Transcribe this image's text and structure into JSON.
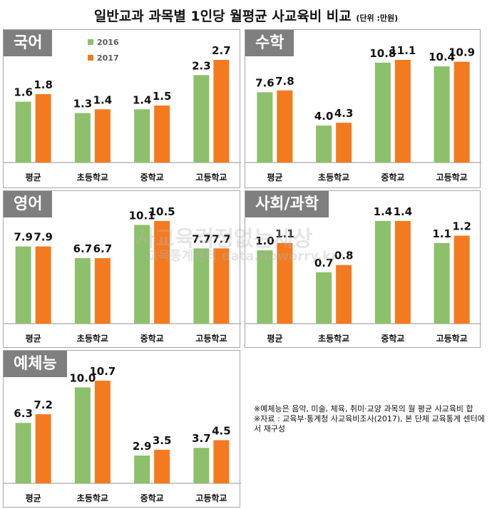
{
  "title": "일반교과 과목별 1인당 월평균 사교육비 비교",
  "unit": "(단위 :만원)",
  "legend": [
    "2016",
    "2017"
  ],
  "colors": {
    "2016": "#8dc06a",
    "2017": "#f47a20",
    "tab": "#7f7f7f"
  },
  "watermark": {
    "line1": "사교육걱정없는세상",
    "line2": "교육통계센터 data.noworry.kr"
  },
  "notes": [
    "※예체능은 음악, 미술, 체육, 취미·교양 과목의 월 평균 사교육비 합",
    "※자료 : 교육부·통계청 사교육비조사(2017), 본 단체 교육통계 센터에서 재구성"
  ],
  "chart_data": [
    {
      "type": "bar",
      "title": "국어",
      "categories": [
        "평균",
        "초등학교",
        "중학교",
        "고등학교"
      ],
      "series": [
        {
          "name": "2016",
          "values": [
            1.6,
            1.3,
            1.4,
            2.3
          ]
        },
        {
          "name": "2017",
          "values": [
            1.8,
            1.4,
            1.5,
            2.7
          ]
        }
      ],
      "legend_position": "top-left"
    },
    {
      "type": "bar",
      "title": "수학",
      "categories": [
        "평균",
        "초등학교",
        "중학교",
        "고등학교"
      ],
      "series": [
        {
          "name": "2016",
          "values": [
            7.6,
            4.0,
            10.8,
            10.4
          ]
        },
        {
          "name": "2017",
          "values": [
            7.8,
            4.3,
            11.1,
            10.9
          ]
        }
      ]
    },
    {
      "type": "bar",
      "title": "영어",
      "categories": [
        "평균",
        "초등학교",
        "중학교",
        "고등학교"
      ],
      "series": [
        {
          "name": "2016",
          "values": [
            7.9,
            6.7,
            10.1,
            7.7
          ]
        },
        {
          "name": "2017",
          "values": [
            7.9,
            6.7,
            10.5,
            7.7
          ]
        }
      ]
    },
    {
      "type": "bar",
      "title": "사회/과학",
      "categories": [
        "평균",
        "초등학교",
        "중학교",
        "고등학교"
      ],
      "series": [
        {
          "name": "2016",
          "values": [
            1.0,
            0.7,
            1.4,
            1.1
          ]
        },
        {
          "name": "2017",
          "values": [
            1.1,
            0.8,
            1.4,
            1.2
          ]
        }
      ]
    },
    {
      "type": "bar",
      "title": "예체능",
      "categories": [
        "평균",
        "초등학교",
        "중학교",
        "고등학교"
      ],
      "series": [
        {
          "name": "2016",
          "values": [
            6.3,
            10.0,
            2.9,
            3.7
          ]
        },
        {
          "name": "2017",
          "values": [
            7.2,
            10.7,
            3.5,
            4.5
          ]
        }
      ]
    }
  ]
}
